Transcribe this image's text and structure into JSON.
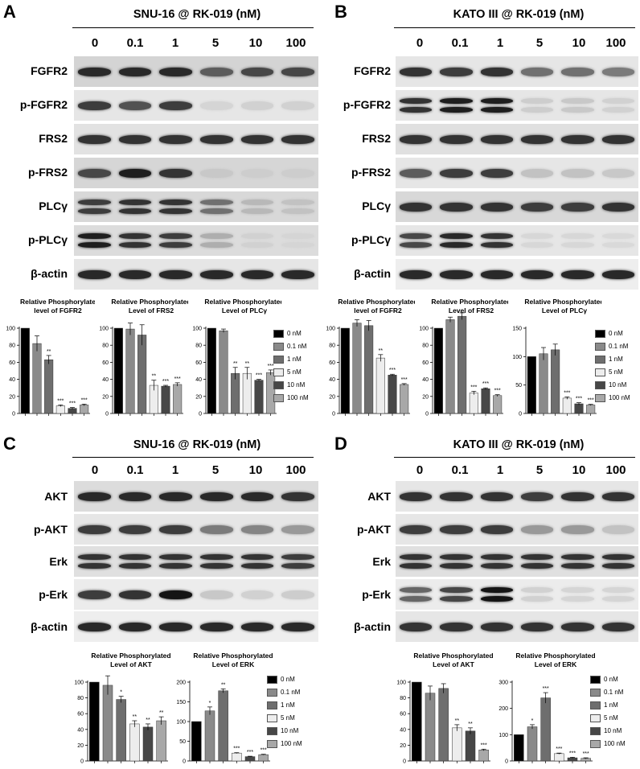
{
  "panels": [
    {
      "label": "A",
      "title": "SNU-16 @ RK-019 (nM)",
      "lanes": [
        "0",
        "0.1",
        "1",
        "5",
        "10",
        "100"
      ],
      "blots": [
        {
          "name": "FGFR2",
          "intensity": [
            0.9,
            0.9,
            0.9,
            0.65,
            0.75,
            0.75
          ],
          "double": false,
          "bg": "#d4d4d4"
        },
        {
          "name": "p-FGFR2",
          "intensity": [
            0.8,
            0.7,
            0.8,
            0.06,
            0.08,
            0.08
          ],
          "double": false,
          "bg": "#e6e6e6"
        },
        {
          "name": "FRS2",
          "intensity": [
            0.85,
            0.85,
            0.85,
            0.85,
            0.85,
            0.85
          ],
          "double": false,
          "bg": "#e2e2e2"
        },
        {
          "name": "p-FRS2",
          "intensity": [
            0.75,
            0.95,
            0.85,
            0.12,
            0.1,
            0.1
          ],
          "double": false,
          "bg": "#d6d6d6"
        },
        {
          "name": "PLCγ",
          "intensity": [
            0.8,
            0.85,
            0.85,
            0.55,
            0.2,
            0.15
          ],
          "double": true,
          "bg": "#d8d8d8"
        },
        {
          "name": "p-PLCγ",
          "intensity": [
            0.95,
            0.85,
            0.8,
            0.25,
            0.08,
            0.06
          ],
          "double": true,
          "bg": "#dcdcdc"
        },
        {
          "name": "β-actin",
          "intensity": [
            0.9,
            0.9,
            0.9,
            0.9,
            0.9,
            0.9
          ],
          "double": false,
          "bg": "#e6e6e6"
        }
      ],
      "charts": [
        {
          "title": [
            "Relative Phosphorylate",
            "level of FGFR2"
          ],
          "ymax": 100,
          "ticks": [
            0,
            20,
            40,
            60,
            80,
            100
          ],
          "values": [
            100,
            82,
            63,
            9,
            6,
            10
          ],
          "errors": [
            0,
            9,
            5,
            1,
            1,
            1
          ],
          "sig": [
            "",
            "",
            "**",
            "***",
            "***",
            "***"
          ]
        },
        {
          "title": [
            "Relative Phosphorylated",
            "Level of FRS2"
          ],
          "ymax": 100,
          "ticks": [
            0,
            20,
            40,
            60,
            80,
            100
          ],
          "values": [
            100,
            99,
            92,
            33,
            32,
            34
          ],
          "errors": [
            0,
            7,
            12,
            6,
            1,
            2
          ],
          "sig": [
            "",
            "",
            "",
            "**",
            "***",
            "***"
          ]
        },
        {
          "title": [
            "Relative Phosphorylated",
            "Level of PLCγ"
          ],
          "ymax": 100,
          "ticks": [
            0,
            20,
            40,
            60,
            80,
            100
          ],
          "values": [
            100,
            97,
            47,
            47,
            39,
            48
          ],
          "errors": [
            0,
            2,
            7,
            7,
            1,
            3
          ],
          "sig": [
            "",
            "",
            "**",
            "**",
            "***",
            "***"
          ]
        }
      ]
    },
    {
      "label": "B",
      "title": "KATO III @ RK-019 (nM)",
      "lanes": [
        "0",
        "0.1",
        "1",
        "5",
        "10",
        "100"
      ],
      "blots": [
        {
          "name": "FGFR2",
          "intensity": [
            0.85,
            0.8,
            0.85,
            0.55,
            0.55,
            0.5
          ],
          "double": false,
          "bg": "#e6e6e6"
        },
        {
          "name": "p-FGFR2",
          "intensity": [
            0.85,
            0.95,
            0.95,
            0.1,
            0.12,
            0.08
          ],
          "double": true,
          "bg": "#e6e6e6"
        },
        {
          "name": "FRS2",
          "intensity": [
            0.85,
            0.85,
            0.85,
            0.85,
            0.85,
            0.85
          ],
          "double": false,
          "bg": "#e0e0e0"
        },
        {
          "name": "p-FRS2",
          "intensity": [
            0.65,
            0.8,
            0.8,
            0.15,
            0.15,
            0.12
          ],
          "double": false,
          "bg": "#e6e6e6"
        },
        {
          "name": "PLCγ",
          "intensity": [
            0.85,
            0.85,
            0.85,
            0.8,
            0.8,
            0.85
          ],
          "double": false,
          "bg": "#d8d8d8"
        },
        {
          "name": "p-PLCγ",
          "intensity": [
            0.75,
            0.9,
            0.85,
            0.05,
            0.05,
            0.04
          ],
          "double": true,
          "bg": "#e6e6e6"
        },
        {
          "name": "β-actin",
          "intensity": [
            0.9,
            0.9,
            0.9,
            0.9,
            0.9,
            0.9
          ],
          "double": false,
          "bg": "#eeeeee"
        }
      ],
      "charts": [
        {
          "title": [
            "Relative Phosphorylated",
            "level of FGFR2"
          ],
          "ymax": 100,
          "ticks": [
            0,
            20,
            40,
            60,
            80,
            100
          ],
          "values": [
            100,
            106,
            103,
            65,
            45,
            34
          ],
          "errors": [
            0,
            4,
            6,
            4,
            1,
            1
          ],
          "sig": [
            "",
            "",
            "",
            "**",
            "***",
            "***"
          ]
        },
        {
          "title": [
            "Relative Phosphorylated",
            "Level of FRS2"
          ],
          "ymax": 100,
          "ticks": [
            0,
            20,
            40,
            60,
            80,
            100
          ],
          "values": [
            100,
            110,
            114,
            24,
            29,
            21
          ],
          "errors": [
            0,
            3,
            4,
            2,
            1,
            1
          ],
          "sig": [
            "",
            "",
            "",
            "***",
            "***",
            "***"
          ]
        },
        {
          "title": [
            "Relative Phosphorylated",
            "Level of PLCγ"
          ],
          "ymax": 150,
          "ticks": [
            0,
            50,
            100,
            150
          ],
          "values": [
            100,
            105,
            112,
            27,
            17,
            15
          ],
          "errors": [
            0,
            11,
            10,
            2,
            2,
            1
          ],
          "sig": [
            "",
            "",
            "",
            "***",
            "***",
            "***"
          ]
        }
      ]
    },
    {
      "label": "C",
      "title": "SNU-16 @ RK-019 (nM)",
      "lanes": [
        "0",
        "0.1",
        "1",
        "5",
        "10",
        "100"
      ],
      "blots": [
        {
          "name": "AKT",
          "intensity": [
            0.9,
            0.9,
            0.9,
            0.9,
            0.9,
            0.85
          ],
          "double": false,
          "bg": "#dcdcdc"
        },
        {
          "name": "p-AKT",
          "intensity": [
            0.8,
            0.8,
            0.8,
            0.5,
            0.45,
            0.35
          ],
          "double": false,
          "bg": "#e6e6e6"
        },
        {
          "name": "Erk",
          "intensity": [
            0.85,
            0.85,
            0.85,
            0.85,
            0.85,
            0.8
          ],
          "double": true,
          "bg": "#e0e0e0"
        },
        {
          "name": "p-Erk",
          "intensity": [
            0.8,
            0.85,
            1.0,
            0.12,
            0.08,
            0.1
          ],
          "double": false,
          "bg": "#ececec"
        },
        {
          "name": "β-actin",
          "intensity": [
            0.9,
            0.9,
            0.9,
            0.9,
            0.9,
            0.9
          ],
          "double": false,
          "bg": "#eeeeee"
        }
      ],
      "charts": [
        {
          "title": [
            "Relative Phosphorylated",
            "Level of AKT"
          ],
          "ymax": 100,
          "ticks": [
            0,
            20,
            40,
            60,
            80,
            100
          ],
          "values": [
            100,
            96,
            78,
            47,
            43,
            51
          ],
          "errors": [
            0,
            12,
            4,
            4,
            4,
            5
          ],
          "sig": [
            "",
            "",
            "*",
            "**",
            "**",
            "**"
          ]
        },
        {
          "title": [
            "Relative Phosphorylated",
            "Level of ERK"
          ],
          "ymax": 200,
          "ticks": [
            0,
            50,
            100,
            150,
            200
          ],
          "values": [
            100,
            127,
            178,
            20,
            11,
            16
          ],
          "errors": [
            0,
            10,
            5,
            1,
            1,
            1
          ],
          "sig": [
            "",
            "*",
            "**",
            "***",
            "***",
            "***"
          ]
        }
      ]
    },
    {
      "label": "D",
      "title": "KATO III @ RK-019 (nM)",
      "lanes": [
        "0",
        "0.1",
        "1",
        "5",
        "10",
        "100"
      ],
      "blots": [
        {
          "name": "AKT",
          "intensity": [
            0.85,
            0.85,
            0.85,
            0.8,
            0.85,
            0.85
          ],
          "double": false,
          "bg": "#e6e6e6"
        },
        {
          "name": "p-AKT",
          "intensity": [
            0.8,
            0.8,
            0.8,
            0.35,
            0.35,
            0.15
          ],
          "double": false,
          "bg": "#e6e6e6"
        },
        {
          "name": "Erk",
          "intensity": [
            0.85,
            0.85,
            0.85,
            0.85,
            0.85,
            0.85
          ],
          "double": true,
          "bg": "#e0e0e0"
        },
        {
          "name": "p-Erk",
          "intensity": [
            0.6,
            0.75,
            1.0,
            0.08,
            0.06,
            0.06
          ],
          "double": true,
          "bg": "#ececec"
        },
        {
          "name": "β-actin",
          "intensity": [
            0.85,
            0.85,
            0.85,
            0.85,
            0.85,
            0.85
          ],
          "double": false,
          "bg": "#e6e6e6"
        }
      ],
      "charts": [
        {
          "title": [
            "Relative Phosphorylated",
            "Level of AKT"
          ],
          "ymax": 100,
          "ticks": [
            0,
            20,
            40,
            60,
            80,
            100
          ],
          "values": [
            100,
            86,
            92,
            42,
            38,
            14
          ],
          "errors": [
            0,
            9,
            6,
            4,
            4,
            1
          ],
          "sig": [
            "",
            "",
            "",
            "**",
            "**",
            "***"
          ]
        },
        {
          "title": [
            "Relative Phosphorylated",
            "Level of ERK"
          ],
          "ymax": 300,
          "ticks": [
            0,
            100,
            200,
            300
          ],
          "values": [
            100,
            130,
            240,
            28,
            12,
            10
          ],
          "errors": [
            0,
            8,
            20,
            2,
            2,
            2
          ],
          "sig": [
            "",
            "*",
            "***",
            "***",
            "***",
            "***"
          ]
        }
      ]
    }
  ],
  "legend": {
    "entries": [
      "0 nM",
      "0.1 nM",
      "1 nM",
      "5 nM",
      "10 nM",
      "100 nM"
    ],
    "colors": [
      "#000000",
      "#8a8a8a",
      "#6e6e6e",
      "#ededed",
      "#474747",
      "#a8a8a8"
    ]
  }
}
